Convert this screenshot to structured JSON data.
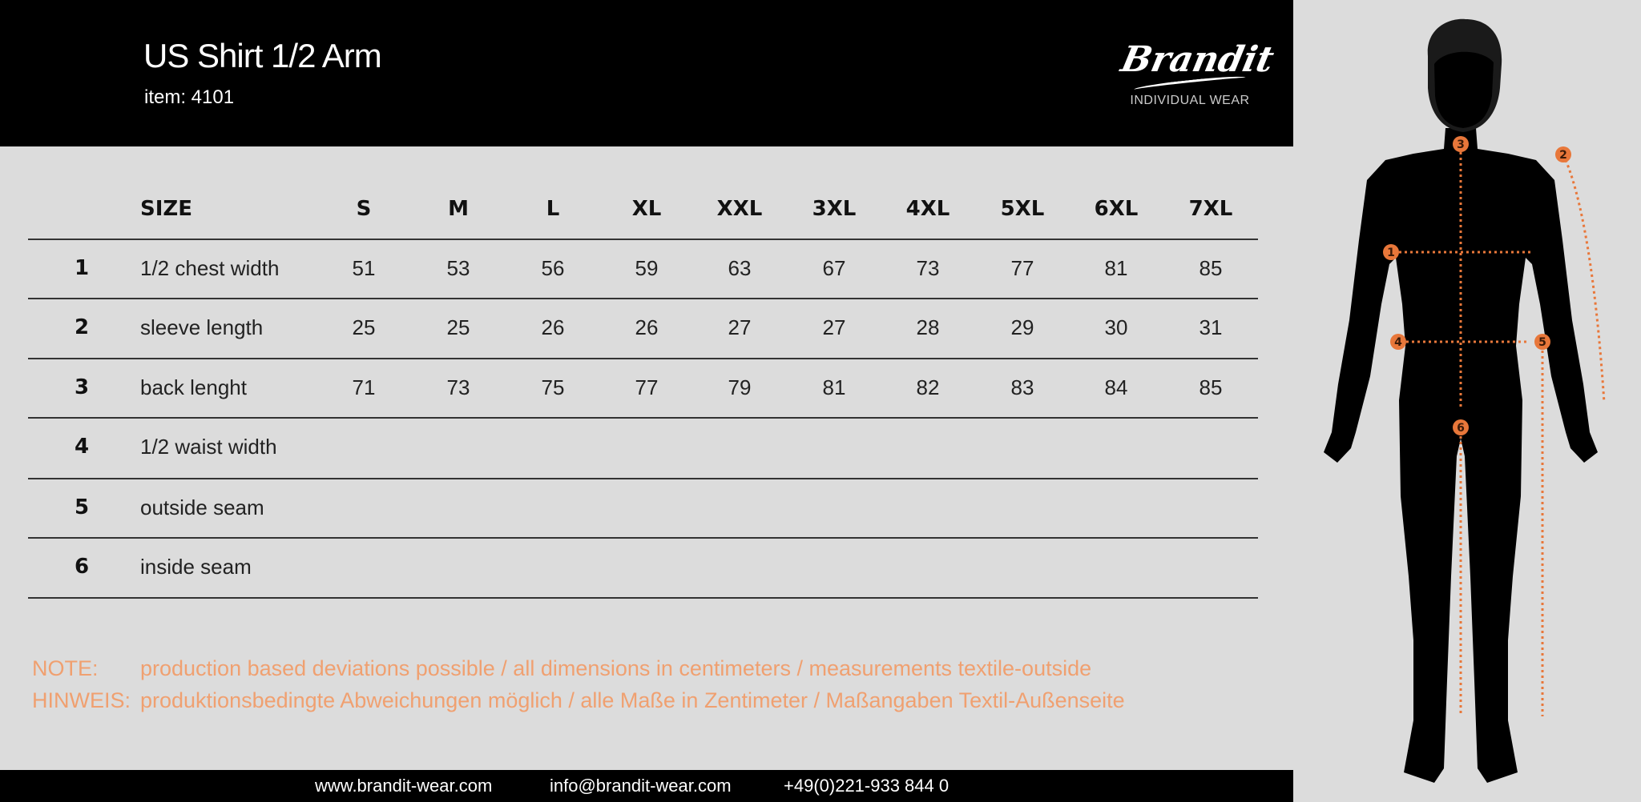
{
  "header": {
    "title": "US Shirt 1/2 Arm",
    "item": "item: 4101",
    "logo": {
      "brand": "Brandit",
      "tagline": "INDIVIDUAL WEAR"
    }
  },
  "table": {
    "size_label": "SIZE",
    "sizes": [
      "S",
      "M",
      "L",
      "XL",
      "XXL",
      "3XL",
      "4XL",
      "5XL",
      "6XL",
      "7XL"
    ],
    "rows": [
      {
        "num": "1",
        "label": "1/2 chest width",
        "values": [
          "51",
          "53",
          "56",
          "59",
          "63",
          "67",
          "73",
          "77",
          "81",
          "85"
        ]
      },
      {
        "num": "2",
        "label": "sleeve length",
        "values": [
          "25",
          "25",
          "26",
          "26",
          "27",
          "27",
          "28",
          "29",
          "30",
          "31"
        ]
      },
      {
        "num": "3",
        "label": "back lenght",
        "values": [
          "71",
          "73",
          "75",
          "77",
          "79",
          "81",
          "82",
          "83",
          "84",
          "85"
        ]
      },
      {
        "num": "4",
        "label": "1/2 waist width",
        "values": []
      },
      {
        "num": "5",
        "label": "outside seam",
        "values": []
      },
      {
        "num": "6",
        "label": "inside seam",
        "values": []
      }
    ]
  },
  "notes": [
    {
      "label": "NOTE:",
      "text": "production based deviations possible / all dimensions in centimeters / measurements textile-outside"
    },
    {
      "label": "HINWEIS:",
      "text": "produktionsbedingte Abweichungen möglich / alle Maße in Zentimeter / Maßangaben Textil-Außenseite"
    }
  ],
  "footer": {
    "website": "www.brandit-wear.com",
    "email": "info@brandit-wear.com",
    "phone": "+49(0)221-933 844 0"
  },
  "figure": {
    "markers": [
      "1",
      "2",
      "3",
      "4",
      "5",
      "6"
    ],
    "colors": {
      "marker": "#e8773a",
      "silhouette": "#000000",
      "note": "#f0a070",
      "background": "#dcdcdc"
    }
  }
}
